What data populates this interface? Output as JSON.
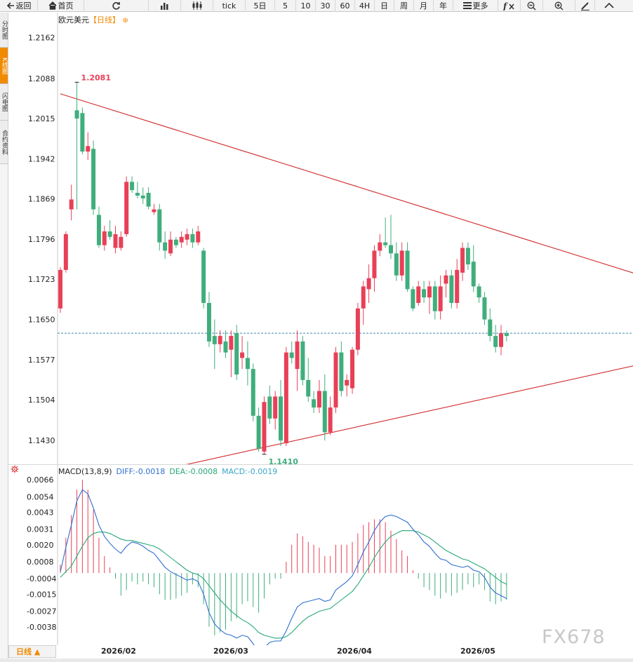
{
  "toolbar": {
    "back_label": "返回",
    "home_label": "首页",
    "period_buttons": [
      "tick",
      "5日",
      "5",
      "10",
      "30",
      "60",
      "4H",
      "日",
      "周",
      "月",
      "年"
    ],
    "more_label": "更多"
  },
  "side_tabs": [
    "分时图",
    "K线图",
    "闪电图",
    "合约资料"
  ],
  "chart": {
    "instrument": "欧元美元",
    "timeframe": "【日线】",
    "high_label": "1.2081",
    "low_label": "1.1410",
    "y_ticks": [
      "1.2162",
      "1.2088",
      "1.2015",
      "1.1942",
      "1.1869",
      "1.1796",
      "1.1723",
      "1.1650",
      "1.1577",
      "1.1504",
      "1.1430"
    ],
    "x_labels": [
      "2026/02",
      "2026/03",
      "2026/04",
      "2026/05"
    ],
    "period_button_label": "日线 ▲",
    "up_color": "#e84057",
    "down_color": "#3fae7c",
    "trendline_color": "#d22b2b",
    "current_price_line_color": "#3e8aa6"
  },
  "macd": {
    "label": "MACD(13,8,9)",
    "diff": "DIFF:-0.0018",
    "dea": "DEA:-0.0008",
    "macd": "MACD:-0.0019",
    "diff_color": "#2f6fd0",
    "dea_color": "#28a878",
    "macd_color": "#3aa6c8",
    "y_ticks": [
      "0.0066",
      "0.0054",
      "0.0043",
      "0.0031",
      "0.0020",
      "0.0008",
      "-0.0004",
      "-0.0015",
      "-0.0027",
      "-0.0038"
    ]
  },
  "watermark": "FX678",
  "chart_data": [
    {
      "type": "candlestick",
      "title": "欧元美元【日线】",
      "ylim": [
        1.1392,
        1.2182
      ],
      "x_labels": [
        "2026/02",
        "2026/03",
        "2026/04",
        "2026/05"
      ],
      "candles": [
        [
          1.167,
          1.1745,
          1.1662,
          1.174
        ],
        [
          1.174,
          1.181,
          1.1735,
          1.1805
        ],
        [
          1.185,
          1.1895,
          1.183,
          1.1868
        ],
        [
          1.203,
          1.2081,
          1.185,
          1.2015
        ],
        [
          1.2025,
          1.2035,
          1.195,
          1.1955
        ],
        [
          1.1955,
          1.199,
          1.194,
          1.1965
        ],
        [
          1.196,
          1.1975,
          1.184,
          1.185
        ],
        [
          1.184,
          1.1855,
          1.178,
          1.1785
        ],
        [
          1.1785,
          1.182,
          1.1775,
          1.181
        ],
        [
          1.181,
          1.183,
          1.1795,
          1.18
        ],
        [
          1.178,
          1.182,
          1.177,
          1.1805
        ],
        [
          1.178,
          1.181,
          1.1775,
          1.18
        ],
        [
          1.1805,
          1.191,
          1.18,
          1.19
        ],
        [
          1.19,
          1.191,
          1.188,
          1.1885
        ],
        [
          1.188,
          1.19,
          1.187,
          1.1875
        ],
        [
          1.1875,
          1.189,
          1.186,
          1.187
        ],
        [
          1.188,
          1.189,
          1.185,
          1.1855
        ],
        [
          1.1845,
          1.186,
          1.184,
          1.185
        ],
        [
          1.185,
          1.186,
          1.1775,
          1.179
        ],
        [
          1.179,
          1.181,
          1.176,
          1.1775
        ],
        [
          1.177,
          1.181,
          1.1765,
          1.1795
        ],
        [
          1.1795,
          1.18,
          1.178,
          1.1785
        ],
        [
          1.179,
          1.181,
          1.178,
          1.18
        ],
        [
          1.1795,
          1.1815,
          1.1785,
          1.1805
        ],
        [
          1.1805,
          1.1815,
          1.178,
          1.179
        ],
        [
          1.179,
          1.182,
          1.1785,
          1.181
        ],
        [
          1.1775,
          1.178,
          1.167,
          1.168
        ],
        [
          1.168,
          1.17,
          1.16,
          1.161
        ],
        [
          1.162,
          1.165,
          1.156,
          1.1605
        ],
        [
          1.1605,
          1.163,
          1.159,
          1.162
        ],
        [
          1.161,
          1.163,
          1.158,
          1.159
        ],
        [
          1.1595,
          1.163,
          1.1545,
          1.162
        ],
        [
          1.1625,
          1.164,
          1.154,
          1.155
        ],
        [
          1.158,
          1.162,
          1.156,
          1.159
        ],
        [
          1.158,
          1.161,
          1.153,
          1.156
        ],
        [
          1.156,
          1.157,
          1.1465,
          1.1475
        ],
        [
          1.1475,
          1.149,
          1.141,
          1.1415
        ],
        [
          1.141,
          1.151,
          1.1405,
          1.15
        ],
        [
          1.151,
          1.153,
          1.146,
          1.147
        ],
        [
          1.147,
          1.152,
          1.145,
          1.151
        ],
        [
          1.151,
          1.154,
          1.142,
          1.143
        ],
        [
          1.1425,
          1.16,
          1.142,
          1.159
        ],
        [
          1.159,
          1.161,
          1.157,
          1.158
        ],
        [
          1.156,
          1.163,
          1.152,
          1.161
        ],
        [
          1.161,
          1.162,
          1.153,
          1.154
        ],
        [
          1.154,
          1.158,
          1.15,
          1.151
        ],
        [
          1.1505,
          1.152,
          1.148,
          1.149
        ],
        [
          1.149,
          1.154,
          1.148,
          1.152
        ],
        [
          1.152,
          1.155,
          1.143,
          1.1445
        ],
        [
          1.1445,
          1.151,
          1.144,
          1.149
        ],
        [
          1.149,
          1.16,
          1.148,
          1.159
        ],
        [
          1.159,
          1.161,
          1.151,
          1.152
        ],
        [
          1.153,
          1.155,
          1.151,
          1.154
        ],
        [
          1.1525,
          1.16,
          1.1515,
          1.1595
        ],
        [
          1.1595,
          1.168,
          1.1585,
          1.167
        ],
        [
          1.167,
          1.172,
          1.164,
          1.171
        ],
        [
          1.1705,
          1.175,
          1.168,
          1.1725
        ],
        [
          1.1725,
          1.1785,
          1.17,
          1.1775
        ],
        [
          1.1775,
          1.1805,
          1.1765,
          1.179
        ],
        [
          1.179,
          1.1835,
          1.178,
          1.1785
        ],
        [
          1.1785,
          1.184,
          1.176,
          1.177
        ],
        [
          1.177,
          1.179,
          1.172,
          1.173
        ],
        [
          1.173,
          1.179,
          1.172,
          1.1775
        ],
        [
          1.1775,
          1.179,
          1.17,
          1.1705
        ],
        [
          1.1705,
          1.171,
          1.1665,
          1.167
        ],
        [
          1.168,
          1.172,
          1.1675,
          1.171
        ],
        [
          1.1705,
          1.172,
          1.168,
          1.169
        ],
        [
          1.169,
          1.172,
          1.166,
          1.171
        ],
        [
          1.171,
          1.172,
          1.165,
          1.1665
        ],
        [
          1.1665,
          1.173,
          1.165,
          1.171
        ],
        [
          1.1715,
          1.174,
          1.169,
          1.173
        ],
        [
          1.173,
          1.174,
          1.167,
          1.168
        ],
        [
          1.168,
          1.176,
          1.167,
          1.174
        ],
        [
          1.1735,
          1.179,
          1.172,
          1.178
        ],
        [
          1.178,
          1.179,
          1.174,
          1.175
        ],
        [
          1.1755,
          1.1785,
          1.17,
          1.171
        ],
        [
          1.171,
          1.1715,
          1.168,
          1.169
        ],
        [
          1.169,
          1.17,
          1.164,
          1.165
        ],
        [
          1.165,
          1.167,
          1.161,
          1.162
        ],
        [
          1.162,
          1.164,
          1.159,
          1.16
        ],
        [
          1.16,
          1.164,
          1.1585,
          1.1625
        ],
        [
          1.1625,
          1.163,
          1.161,
          1.162
        ]
      ],
      "current_price": 1.1625,
      "trendlines": [
        {
          "name": "upper",
          "from": [
            0,
            1.206
          ],
          "to": [
            115,
            1.17
          ]
        },
        {
          "name": "lower",
          "from": [
            20,
            1.138
          ],
          "to": [
            115,
            1.159
          ]
        }
      ]
    },
    {
      "type": "macd",
      "title": "MACD(13,8,9)",
      "ylim": [
        -0.005,
        0.0072
      ],
      "series": [
        {
          "name": "DIFF",
          "values": [
            0.0001,
            0.0018,
            0.0034,
            0.0051,
            0.0059,
            0.0056,
            0.0046,
            0.0034,
            0.0026,
            0.0021,
            0.0017,
            0.0014,
            0.0019,
            0.0022,
            0.0021,
            0.0019,
            0.0016,
            0.0014,
            0.0009,
            0.0004,
            0.0001,
            -0.0001,
            -0.0003,
            -0.0005,
            -0.0004,
            -0.0006,
            -0.0015,
            -0.0028,
            -0.0036,
            -0.004,
            -0.0043,
            -0.0044,
            -0.0046,
            -0.0044,
            -0.0045,
            -0.005,
            -0.0056,
            -0.0053,
            -0.0049,
            -0.0048,
            -0.0048,
            -0.0041,
            -0.0032,
            -0.0024,
            -0.0021,
            -0.002,
            -0.0019,
            -0.0018,
            -0.002,
            -0.0019,
            -0.0012,
            -0.0009,
            -0.0006,
            -0.0002,
            0.0006,
            0.0015,
            0.0022,
            0.003,
            0.0036,
            0.004,
            0.0041,
            0.004,
            0.0038,
            0.0036,
            0.0031,
            0.0027,
            0.0022,
            0.0019,
            0.0014,
            0.001,
            0.0009,
            0.0006,
            0.0005,
            0.0004,
            0.0005,
            0.0002,
            0.0001,
            -0.0003,
            -0.001,
            -0.0014,
            -0.0016,
            -0.0018
          ]
        },
        {
          "name": "DEA",
          "values": [
            -0.0003,
            0.0001,
            0.0005,
            0.0012,
            0.0019,
            0.0025,
            0.0028,
            0.0029,
            0.0029,
            0.0028,
            0.0026,
            0.0024,
            0.0023,
            0.0023,
            0.0022,
            0.0021,
            0.002,
            0.0019,
            0.0017,
            0.0014,
            0.0011,
            0.0008,
            0.0005,
            0.0002,
            0.0,
            -0.0001,
            -0.0004,
            -0.0009,
            -0.0014,
            -0.0019,
            -0.0023,
            -0.0027,
            -0.003,
            -0.0033,
            -0.0035,
            -0.0038,
            -0.0042,
            -0.0044,
            -0.0045,
            -0.0046,
            -0.0046,
            -0.0045,
            -0.0042,
            -0.0038,
            -0.0034,
            -0.0031,
            -0.0029,
            -0.0027,
            -0.0026,
            -0.0025,
            -0.0022,
            -0.0019,
            -0.0016,
            -0.0013,
            -0.0008,
            -0.0002,
            0.0004,
            0.0011,
            0.0017,
            0.0022,
            0.0026,
            0.0028,
            0.003,
            0.003,
            0.003,
            0.0029,
            0.0027,
            0.0025,
            0.0022,
            0.0019,
            0.0016,
            0.0014,
            0.0012,
            0.001,
            0.0009,
            0.0007,
            0.0005,
            0.0003,
            0.0,
            -0.0003,
            -0.0006,
            -0.0008
          ]
        },
        {
          "name": "MACD",
          "values": [
            0.0006,
            0.0025,
            0.0041,
            0.0059,
            0.0066,
            0.0059,
            0.0045,
            0.0025,
            0.0012,
            0.0004,
            -0.0004,
            -0.0016,
            -0.0012,
            -0.0006,
            -0.0008,
            -0.0006,
            -0.0008,
            -0.001,
            -0.0015,
            -0.0019,
            -0.0019,
            -0.0018,
            -0.0016,
            -0.0014,
            -0.0008,
            -0.001,
            -0.0022,
            -0.0038,
            -0.0044,
            -0.0042,
            -0.004,
            -0.0034,
            -0.0032,
            -0.0022,
            -0.002,
            -0.0024,
            -0.0028,
            -0.0018,
            -0.0008,
            -0.0004,
            -0.0004,
            0.0008,
            0.002,
            0.0028,
            0.0026,
            0.0022,
            0.002,
            0.0018,
            0.0012,
            0.0012,
            0.002,
            0.002,
            0.002,
            0.0022,
            0.0028,
            0.0034,
            0.0036,
            0.0038,
            0.0038,
            0.0036,
            0.003,
            0.0024,
            0.0016,
            0.0012,
            0.0002,
            -0.0004,
            -0.001,
            -0.0012,
            -0.0016,
            -0.0018,
            -0.0014,
            -0.0016,
            -0.0014,
            -0.0012,
            -0.0008,
            -0.001,
            -0.0008,
            -0.0012,
            -0.002,
            -0.0022,
            -0.002,
            -0.0019
          ]
        }
      ]
    }
  ]
}
